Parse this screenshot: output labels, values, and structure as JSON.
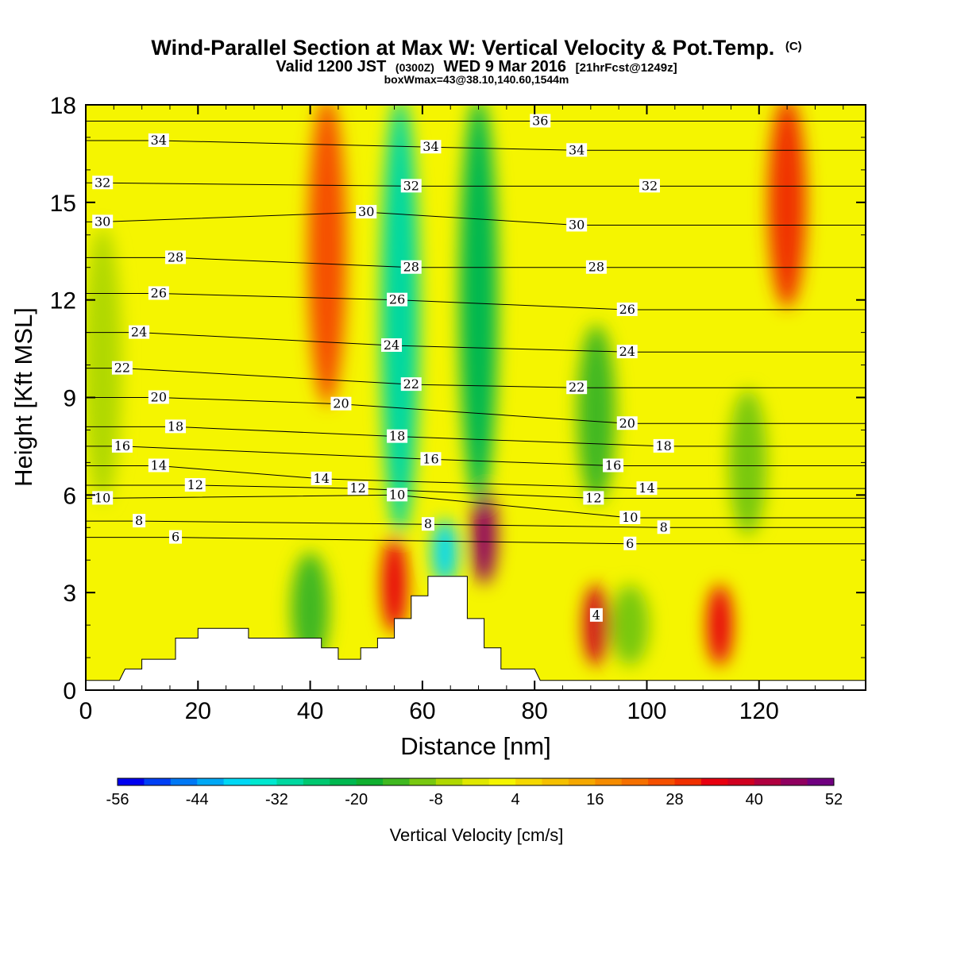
{
  "title": "Wind-Parallel Section at Max W: Vertical Velocity & Pot.Temp.",
  "title_mark": "(C)",
  "subtitle": {
    "prefix": "Valid 1200 JST",
    "utc": "(0300Z)",
    "date": "WED 9 Mar 2016",
    "forecast": "[21hrFcst@1249z]"
  },
  "box_info": "boxWmax=43@38.10,140.60,1544m",
  "colors": {
    "background_level": "#f5f500",
    "terrain": "#ffffff",
    "contour": "#000000"
  },
  "chart_data": {
    "type": "heatmap",
    "title": "Wind-Parallel Section at Max W: Vertical Velocity & Pot.Temp.",
    "xlabel": "Distance [nm]",
    "ylabel": "Height [Kft MSL]",
    "xlim": [
      0,
      139
    ],
    "ylim": [
      0,
      18
    ],
    "x_ticks": [
      "0",
      "20",
      "40",
      "60",
      "80",
      "100",
      "120"
    ],
    "y_ticks": [
      "0",
      "3",
      "6",
      "9",
      "12",
      "15",
      "18"
    ],
    "colorbar": {
      "label": "Vertical Velocity [cm/s]",
      "min": -56,
      "max": 52,
      "step": 4,
      "tick_labels": [
        "-56",
        "-44",
        "-32",
        "-20",
        "-8",
        "4",
        "16",
        "28",
        "40",
        "52"
      ],
      "colors": [
        "#0000f0",
        "#0040f5",
        "#0078f5",
        "#00a8f5",
        "#00d8f5",
        "#00e8d0",
        "#00d8a0",
        "#00c870",
        "#00b850",
        "#10b030",
        "#40b820",
        "#78c810",
        "#b0d800",
        "#e0e800",
        "#f5f500",
        "#f5d800",
        "#f5c000",
        "#f5a800",
        "#f58c00",
        "#f57000",
        "#f55000",
        "#f03000",
        "#e80010",
        "#d00020",
        "#b00040",
        "#900060",
        "#700080"
      ]
    },
    "velocity_features": [
      {
        "x": 56,
        "z_top": 18,
        "z_bottom": 5,
        "w": -30
      },
      {
        "x": 64,
        "z_top": 5,
        "z_bottom": 3.5,
        "w": -40
      },
      {
        "x": 71,
        "z_top": 6,
        "z_bottom": 3.5,
        "w": 45
      },
      {
        "x": 70,
        "z_top": 18,
        "z_bottom": 6,
        "w": -22
      },
      {
        "x": 43,
        "z_top": 18,
        "z_bottom": 9,
        "w": 26
      },
      {
        "x": 125,
        "z_top": 18,
        "z_bottom": 12,
        "w": 28
      },
      {
        "x": 91,
        "z_top": 3,
        "z_bottom": 1,
        "w": 36
      },
      {
        "x": 113,
        "z_top": 3,
        "z_bottom": 1,
        "w": 32
      },
      {
        "x": 55,
        "z_top": 4.5,
        "z_bottom": 2,
        "w": 34
      },
      {
        "x": 91,
        "z_top": 11,
        "z_bottom": 6,
        "w": -14
      },
      {
        "x": 97,
        "z_top": 3,
        "z_bottom": 1,
        "w": -10
      },
      {
        "x": 3,
        "z_top": 14,
        "z_bottom": 6,
        "w": -8
      },
      {
        "x": 118,
        "z_top": 9,
        "z_bottom": 5,
        "w": -12
      },
      {
        "x": 40,
        "z_top": 4,
        "z_bottom": 1,
        "w": -15
      }
    ],
    "terrain_profile": [
      {
        "x": 0,
        "z": 0.3
      },
      {
        "x": 6,
        "z": 0.3
      },
      {
        "x": 7,
        "z": 0.65
      },
      {
        "x": 10,
        "z": 0.65
      },
      {
        "x": 10,
        "z": 0.95
      },
      {
        "x": 16,
        "z": 0.95
      },
      {
        "x": 16,
        "z": 1.6
      },
      {
        "x": 20,
        "z": 1.6
      },
      {
        "x": 20,
        "z": 1.9
      },
      {
        "x": 29,
        "z": 1.9
      },
      {
        "x": 29,
        "z": 1.6
      },
      {
        "x": 42,
        "z": 1.6
      },
      {
        "x": 42,
        "z": 1.3
      },
      {
        "x": 45,
        "z": 1.3
      },
      {
        "x": 45,
        "z": 0.95
      },
      {
        "x": 49,
        "z": 0.95
      },
      {
        "x": 49,
        "z": 1.3
      },
      {
        "x": 52,
        "z": 1.3
      },
      {
        "x": 52,
        "z": 1.6
      },
      {
        "x": 55,
        "z": 1.6
      },
      {
        "x": 55,
        "z": 2.2
      },
      {
        "x": 58,
        "z": 2.2
      },
      {
        "x": 58,
        "z": 2.9
      },
      {
        "x": 61,
        "z": 2.9
      },
      {
        "x": 61,
        "z": 3.5
      },
      {
        "x": 68,
        "z": 3.5
      },
      {
        "x": 68,
        "z": 2.2
      },
      {
        "x": 71,
        "z": 2.2
      },
      {
        "x": 71,
        "z": 1.3
      },
      {
        "x": 74,
        "z": 1.3
      },
      {
        "x": 74,
        "z": 0.65
      },
      {
        "x": 80,
        "z": 0.65
      },
      {
        "x": 81,
        "z": 0.3
      },
      {
        "x": 139,
        "z": 0.3
      }
    ],
    "theta_contour_labels": [
      {
        "text": "36",
        "x": 81,
        "z": 17.5
      },
      {
        "text": "34",
        "x": 13,
        "z": 16.9
      },
      {
        "text": "34",
        "x": 61.5,
        "z": 16.7
      },
      {
        "text": "34",
        "x": 87.5,
        "z": 16.6
      },
      {
        "text": "32",
        "x": 3,
        "z": 15.6
      },
      {
        "text": "32",
        "x": 58,
        "z": 15.5
      },
      {
        "text": "32",
        "x": 100.5,
        "z": 15.5
      },
      {
        "text": "30",
        "x": 3,
        "z": 14.4
      },
      {
        "text": "30",
        "x": 50,
        "z": 14.7
      },
      {
        "text": "30",
        "x": 87.5,
        "z": 14.3
      },
      {
        "text": "28",
        "x": 16,
        "z": 13.3
      },
      {
        "text": "28",
        "x": 58,
        "z": 13.0
      },
      {
        "text": "28",
        "x": 91,
        "z": 13.0
      },
      {
        "text": "26",
        "x": 13,
        "z": 12.2
      },
      {
        "text": "26",
        "x": 55.5,
        "z": 12.0
      },
      {
        "text": "26",
        "x": 96.5,
        "z": 11.7
      },
      {
        "text": "24",
        "x": 9.5,
        "z": 11.0
      },
      {
        "text": "24",
        "x": 54.5,
        "z": 10.6
      },
      {
        "text": "24",
        "x": 96.5,
        "z": 10.4
      },
      {
        "text": "22",
        "x": 6.5,
        "z": 9.9
      },
      {
        "text": "22",
        "x": 58,
        "z": 9.4
      },
      {
        "text": "22",
        "x": 87.5,
        "z": 9.3
      },
      {
        "text": "20",
        "x": 13,
        "z": 9.0
      },
      {
        "text": "20",
        "x": 45.5,
        "z": 8.8
      },
      {
        "text": "20",
        "x": 96.5,
        "z": 8.2
      },
      {
        "text": "18",
        "x": 16,
        "z": 8.1
      },
      {
        "text": "18",
        "x": 55.5,
        "z": 7.8
      },
      {
        "text": "18",
        "x": 103,
        "z": 7.5
      },
      {
        "text": "16",
        "x": 6.5,
        "z": 7.5
      },
      {
        "text": "16",
        "x": 61.5,
        "z": 7.1
      },
      {
        "text": "16",
        "x": 94,
        "z": 6.9
      },
      {
        "text": "14",
        "x": 13,
        "z": 6.9
      },
      {
        "text": "14",
        "x": 42,
        "z": 6.5
      },
      {
        "text": "14",
        "x": 100,
        "z": 6.2
      },
      {
        "text": "12",
        "x": 19.5,
        "z": 6.3
      },
      {
        "text": "12",
        "x": 48.5,
        "z": 6.2
      },
      {
        "text": "12",
        "x": 90.5,
        "z": 5.9
      },
      {
        "text": "10",
        "x": 3,
        "z": 5.9
      },
      {
        "text": "10",
        "x": 55.5,
        "z": 6.0
      },
      {
        "text": "10",
        "x": 97,
        "z": 5.3
      },
      {
        "text": "8",
        "x": 9.5,
        "z": 5.2
      },
      {
        "text": "8",
        "x": 61,
        "z": 5.1
      },
      {
        "text": "8",
        "x": 103,
        "z": 5.0
      },
      {
        "text": "6",
        "x": 16,
        "z": 4.7
      },
      {
        "text": "6",
        "x": 97,
        "z": 4.5
      },
      {
        "text": "4",
        "x": 91,
        "z": 2.3
      }
    ]
  }
}
